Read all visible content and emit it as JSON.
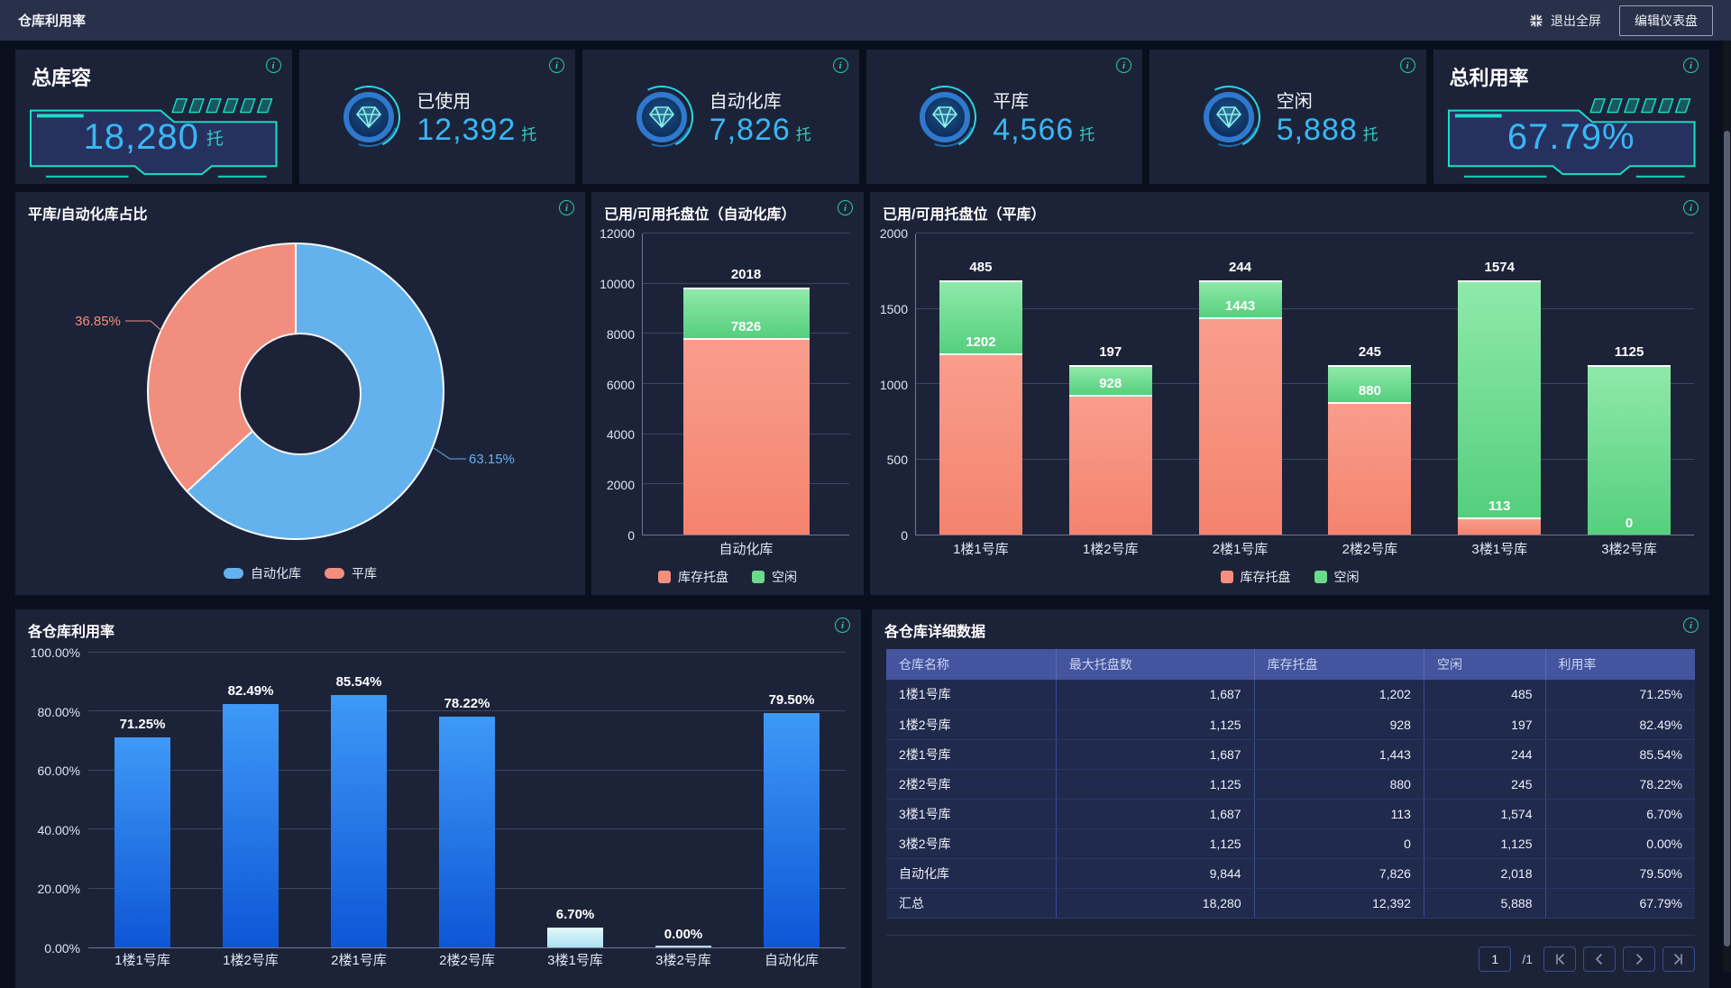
{
  "header": {
    "title": "仓库利用率",
    "exit_fullscreen": "退出全屏",
    "edit_button": "编辑仪表盘"
  },
  "kpis": [
    {
      "label": "总库容",
      "value": "18,280",
      "unit": "托",
      "style": "techbox"
    },
    {
      "label": "已使用",
      "value": "12,392",
      "unit": "托",
      "style": "icon"
    },
    {
      "label": "自动化库",
      "value": "7,826",
      "unit": "托",
      "style": "icon"
    },
    {
      "label": "平库",
      "value": "4,566",
      "unit": "托",
      "style": "icon"
    },
    {
      "label": "空闲",
      "value": "5,888",
      "unit": "托",
      "style": "icon"
    },
    {
      "label": "总利用率",
      "value": "67.79%",
      "unit": "",
      "style": "techbox"
    }
  ],
  "panels": {
    "pie": {
      "title": "平库/自动化库占比"
    },
    "auto": {
      "title": "已用/可用托盘位（自动化库）"
    },
    "flat": {
      "title": "已用/可用托盘位（平库）"
    },
    "util": {
      "title": "各仓库利用率"
    },
    "table": {
      "title": "各仓库详细数据"
    }
  },
  "chart_data": [
    {
      "id": "pie",
      "type": "pie",
      "title": "平库/自动化库占比",
      "labels": [
        "自动化库",
        "平库"
      ],
      "values": [
        63.15,
        36.85
      ],
      "labels_text": [
        "63.15%",
        "36.85%"
      ],
      "colors": [
        "#63B2EE",
        "#F28E7E"
      ],
      "legend": [
        "自动化库",
        "平库"
      ],
      "legend_position": "bottom"
    },
    {
      "id": "auto",
      "type": "bar",
      "stacked": true,
      "title": "已用/可用托盘位（自动化库）",
      "categories": [
        "自动化库"
      ],
      "series": [
        {
          "name": "库存托盘",
          "values": [
            7826
          ],
          "color": "#F58E7D",
          "gradient": [
            "#F99D8C",
            "#F4836F"
          ]
        },
        {
          "name": "空闲",
          "values": [
            2018
          ],
          "color": "#6CD98B",
          "gradient": [
            "#8FE9A9",
            "#55CF7D"
          ]
        }
      ],
      "ylim": [
        0,
        12000
      ],
      "yticks": [
        0,
        2000,
        4000,
        6000,
        8000,
        10000,
        12000
      ],
      "grid": true,
      "legend_position": "bottom"
    },
    {
      "id": "flat",
      "type": "bar",
      "stacked": true,
      "title": "已用/可用托盘位（平库）",
      "categories": [
        "1楼1号库",
        "1楼2号库",
        "2楼1号库",
        "2楼2号库",
        "3楼1号库",
        "3楼2号库"
      ],
      "series": [
        {
          "name": "库存托盘",
          "values": [
            1202,
            928,
            1443,
            880,
            113,
            0
          ],
          "color": "#F58E7D",
          "gradient": [
            "#F99D8C",
            "#F4836F"
          ]
        },
        {
          "name": "空闲",
          "values": [
            485,
            197,
            244,
            245,
            1574,
            1125
          ],
          "color": "#6CD98B",
          "gradient": [
            "#8FE9A9",
            "#55CF7D"
          ]
        }
      ],
      "ylim": [
        0,
        2000
      ],
      "yticks": [
        0,
        500,
        1000,
        1500,
        2000
      ],
      "grid": true,
      "legend_position": "bottom"
    },
    {
      "id": "util",
      "type": "bar",
      "title": "各仓库利用率",
      "categories": [
        "1楼1号库",
        "1楼2号库",
        "2楼1号库",
        "2楼2号库",
        "3楼1号库",
        "3楼2号库",
        "自动化库"
      ],
      "values": [
        71.25,
        82.49,
        85.54,
        78.22,
        6.7,
        0.0,
        79.5
      ],
      "labels": [
        "71.25%",
        "82.49%",
        "85.54%",
        "78.22%",
        "6.70%",
        "0.00%",
        "79.50%"
      ],
      "ylim": [
        0,
        100
      ],
      "ytick_labels": [
        "0.00%",
        "20.00%",
        "40.00%",
        "60.00%",
        "80.00%",
        "100.00%"
      ],
      "bar_gradient": [
        "#3E99F7",
        "#0E56D6"
      ],
      "pale_gradient": [
        "#E2F7FC",
        "#ABE2F2"
      ],
      "pale_index": 4,
      "grid": true
    }
  ],
  "table": {
    "columns": [
      "仓库名称",
      "最大托盘数",
      "库存托盘",
      "空闲",
      "利用率"
    ],
    "col_widths": [
      "21%",
      "24.5%",
      "21%",
      "15%",
      "18.5%"
    ],
    "rows": [
      [
        "1楼1号库",
        "1,687",
        "1,202",
        "485",
        "71.25%"
      ],
      [
        "1楼2号库",
        "1,125",
        "928",
        "197",
        "82.49%"
      ],
      [
        "2楼1号库",
        "1,687",
        "1,443",
        "244",
        "85.54%"
      ],
      [
        "2楼2号库",
        "1,125",
        "880",
        "245",
        "78.22%"
      ],
      [
        "3楼1号库",
        "1,687",
        "113",
        "1,574",
        "6.70%"
      ],
      [
        "3楼2号库",
        "1,125",
        "0",
        "1,125",
        "0.00%"
      ],
      [
        "自动化库",
        "9,844",
        "7,826",
        "2,018",
        "79.50%"
      ],
      [
        "汇总",
        "18,280",
        "12,392",
        "5,888",
        "67.79%"
      ]
    ]
  },
  "pagination": {
    "page": "1",
    "total": "/1"
  },
  "colors": {
    "accent_teal": "#1BE0C2",
    "kpi_value": "#38B8F5",
    "kpi_unit": "#2FD0BE",
    "pie_blue": "#63B2EE",
    "pie_salmon": "#F28E7E",
    "panel_bg": "#1C2339",
    "page_bg": "#0A0F1E",
    "topbar_bg": "#293049",
    "table_header_bg": "#44549E",
    "info_icon": "#2BC8A8"
  }
}
